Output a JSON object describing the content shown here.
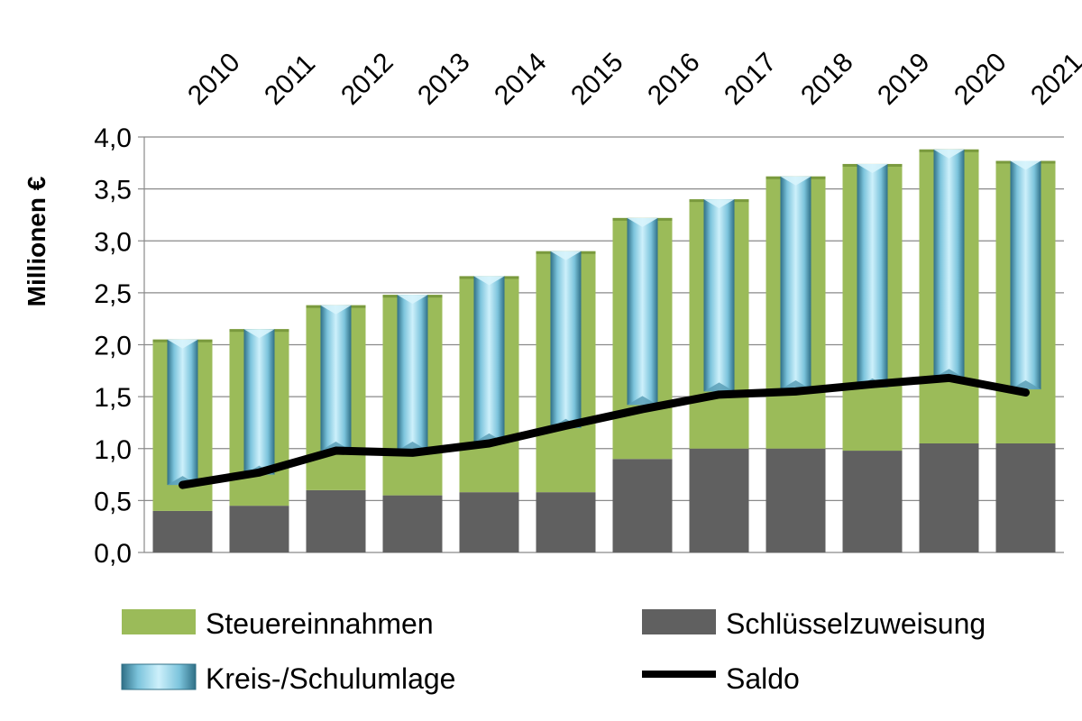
{
  "chart_data": {
    "type": "bar",
    "categories": [
      "2010",
      "2011",
      "2012",
      "2013",
      "2014",
      "2015",
      "2016",
      "2017",
      "2018",
      "2019",
      "2020",
      "2021"
    ],
    "ylabel": "Millionen €",
    "ylim": [
      0,
      4.0
    ],
    "yticks": [
      "0,0",
      "0,5",
      "1,0",
      "1,5",
      "2,0",
      "2,5",
      "3,0",
      "3,5",
      "4,0"
    ],
    "grid": true,
    "xaxis_position": "top",
    "legend_position": "bottom",
    "series": [
      {
        "name": "Schlüsselzuweisung",
        "kind": "stacked-bar",
        "color": "#606060",
        "values": [
          0.4,
          0.45,
          0.6,
          0.55,
          0.58,
          0.58,
          0.9,
          1.0,
          1.0,
          0.98,
          1.05,
          1.05
        ]
      },
      {
        "name": "Steuereinnahmen",
        "kind": "stacked-bar",
        "color": "#9BBB59",
        "values": [
          1.65,
          1.7,
          1.78,
          1.93,
          2.08,
          2.32,
          2.32,
          2.4,
          2.62,
          2.76,
          2.83,
          2.72
        ]
      },
      {
        "name": "Kreis-/Schulumlage",
        "kind": "overlay-bar",
        "color": "#8FD0E6",
        "values": [
          1.4,
          1.4,
          1.4,
          1.5,
          1.6,
          1.7,
          1.8,
          1.85,
          2.05,
          2.15,
          2.2,
          2.2
        ]
      },
      {
        "name": "Saldo",
        "kind": "line",
        "color": "#000000",
        "values": [
          0.65,
          0.77,
          0.98,
          0.96,
          1.05,
          1.22,
          1.38,
          1.52,
          1.55,
          1.62,
          1.68,
          1.54
        ]
      }
    ]
  },
  "legend": {
    "steuer": "Steuereinnahmen",
    "schluessel": "Schlüsselzuweisung",
    "kreis": "Kreis-/Schulumlage",
    "saldo": "Saldo"
  }
}
